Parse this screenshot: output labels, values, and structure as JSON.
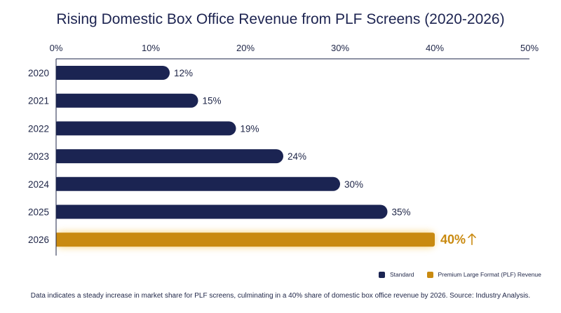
{
  "chart_data": {
    "type": "bar",
    "orientation": "horizontal",
    "title": "Rising Domestic Box Office Revenue from PLF Screens (2020-2026)",
    "categories": [
      "2020",
      "2021",
      "2022",
      "2023",
      "2024",
      "2025",
      "2026"
    ],
    "values": [
      12,
      15,
      19,
      24,
      30,
      35,
      40
    ],
    "value_labels": [
      "12%",
      "15%",
      "19%",
      "24%",
      "30%",
      "35%",
      "40%"
    ],
    "highlight_suffix": "↑",
    "series_per_category": [
      "Standard",
      "Standard",
      "Standard",
      "Standard",
      "Standard",
      "Standard",
      "Premium Large Format (PLF) Revenue"
    ],
    "xlim": [
      0,
      50
    ],
    "x_ticks": [
      "0%",
      "10%",
      "20%",
      "30%",
      "40%",
      "50%"
    ],
    "x_tick_values": [
      0,
      10,
      20,
      30,
      40,
      50
    ],
    "xlabel": "",
    "ylabel": "",
    "grid": false,
    "legend_position": "bottom-right",
    "legend": [
      {
        "name": "Standard",
        "color": "#1b2452"
      },
      {
        "name": "Premium Large Format (PLF) Revenue",
        "color": "#c98a10"
      }
    ],
    "footnote": "Data indicates a steady increase in market share for PLF screens, culminating in a 40% share of domestic box office revenue by 2026. Source: Industry Analysis."
  }
}
